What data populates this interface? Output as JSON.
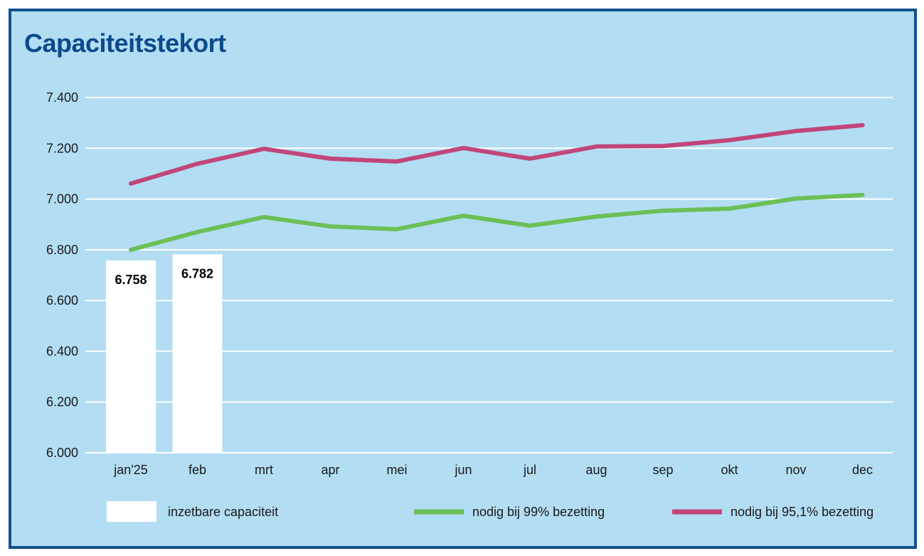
{
  "chart_data": {
    "type": "line",
    "title": "Capaciteitstekort",
    "categories": [
      "jan'25",
      "feb",
      "mrt",
      "apr",
      "mei",
      "jun",
      "jul",
      "aug",
      "sep",
      "okt",
      "nov",
      "dec"
    ],
    "ylim": [
      6000,
      7400
    ],
    "yticks": [
      6000,
      6200,
      6400,
      6600,
      6800,
      7000,
      7200,
      7400
    ],
    "ytick_labels": [
      "6.000",
      "6.200",
      "6.400",
      "6.600",
      "6.800",
      "7.000",
      "7.200",
      "7.400"
    ],
    "grid": true,
    "legend_placement": "bottom",
    "bars": {
      "name": "inzetbare capaciteit",
      "color": "#ffffff",
      "values": [
        6758,
        6782
      ],
      "labels": [
        "6.758",
        "6.782"
      ]
    },
    "series": [
      {
        "name": "nodig bij 99% bezetting",
        "color": "#6cbf56",
        "values": [
          6800,
          6870,
          6929,
          6892,
          6881,
          6934,
          6895,
          6931,
          6954,
          6962,
          7002,
          7016
        ]
      },
      {
        "name": "nodig bij 95,1% bezetting",
        "color": "#c0467a",
        "values": [
          7061,
          7139,
          7198,
          7159,
          7148,
          7201,
          7159,
          7207,
          7209,
          7232,
          7268,
          7291
        ]
      }
    ]
  }
}
